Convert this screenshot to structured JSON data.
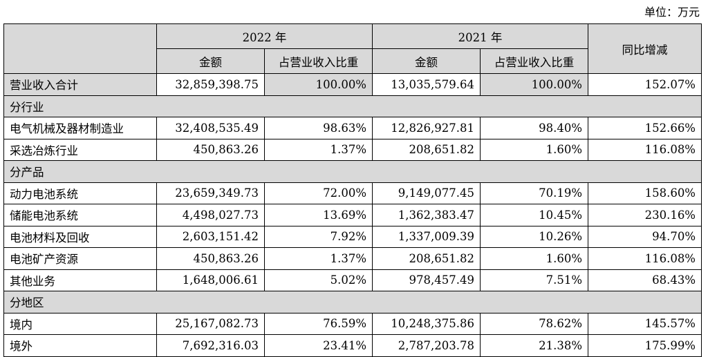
{
  "unit_label": "单位：万元",
  "headers": {
    "year_2022": "2022 年",
    "year_2021": "2021 年",
    "amount": "金额",
    "ratio": "占营业收入比重",
    "yoy": "同比增减"
  },
  "total_row": {
    "label": "营业收入合计",
    "amt2022": "32,859,398.75",
    "pct2022": "100.00%",
    "amt2021": "13,035,579.64",
    "pct2021": "100.00%",
    "yoy": "152.07%"
  },
  "sections": [
    {
      "title": "分行业",
      "rows": [
        {
          "label": "电气机械及器材制造业",
          "amt2022": "32,408,535.49",
          "pct2022": "98.63%",
          "amt2021": "12,826,927.81",
          "pct2021": "98.40%",
          "yoy": "152.66%"
        },
        {
          "label": "采选冶炼行业",
          "amt2022": "450,863.26",
          "pct2022": "1.37%",
          "amt2021": "208,651.82",
          "pct2021": "1.60%",
          "yoy": "116.08%"
        }
      ]
    },
    {
      "title": "分产品",
      "rows": [
        {
          "label": "动力电池系统",
          "amt2022": "23,659,349.73",
          "pct2022": "72.00%",
          "amt2021": "9,149,077.45",
          "pct2021": "70.19%",
          "yoy": "158.60%"
        },
        {
          "label": "储能电池系统",
          "amt2022": "4,498,027.73",
          "pct2022": "13.69%",
          "amt2021": "1,362,383.47",
          "pct2021": "10.45%",
          "yoy": "230.16%"
        },
        {
          "label": "电池材料及回收",
          "amt2022": "2,603,151.42",
          "pct2022": "7.92%",
          "amt2021": "1,337,009.39",
          "pct2021": "10.26%",
          "yoy": "94.70%"
        },
        {
          "label": "电池矿产资源",
          "amt2022": "450,863.26",
          "pct2022": "1.37%",
          "amt2021": "208,651.82",
          "pct2021": "1.60%",
          "yoy": "116.08%"
        },
        {
          "label": "其他业务",
          "amt2022": "1,648,006.61",
          "pct2022": "5.02%",
          "amt2021": "978,457.49",
          "pct2021": "7.51%",
          "yoy": "68.43%"
        }
      ]
    },
    {
      "title": "分地区",
      "rows": [
        {
          "label": "境内",
          "amt2022": "25,167,082.73",
          "pct2022": "76.59%",
          "amt2021": "10,248,375.86",
          "pct2021": "78.62%",
          "yoy": "145.57%"
        },
        {
          "label": "境外",
          "amt2022": "7,692,316.03",
          "pct2022": "23.41%",
          "amt2021": "2,787,203.78",
          "pct2021": "21.38%",
          "yoy": "175.99%"
        }
      ]
    }
  ]
}
